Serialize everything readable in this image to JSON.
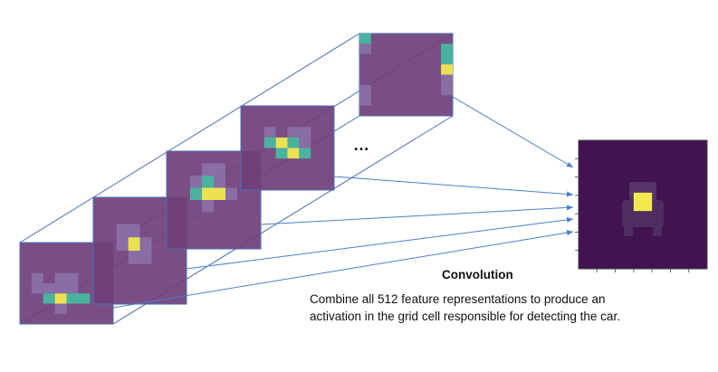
{
  "colors": {
    "map_background": "#6f3f7a",
    "map_border": "#4a6fb5",
    "connector_line": "#4a6fb5",
    "arrow": "#4a7fc8",
    "output_background": "#41134f",
    "output_border": "#444444",
    "low_activation": "#8a6fa6",
    "mid_activation": "#47b8a0",
    "high_activation": "#f2e94e",
    "text": "#111111"
  },
  "ellipsis": "…",
  "caption": {
    "title": "Convolution",
    "line1": "Combine all 512 feature representations to produce an",
    "line2": "activation in the grid cell responsible for detecting the car."
  },
  "feature_maps": [
    {
      "name": "feature-map-1",
      "cells": [
        {
          "row": 3,
          "col": 1,
          "level": "low"
        },
        {
          "row": 3,
          "col": 3,
          "level": "low"
        },
        {
          "row": 3,
          "col": 4,
          "level": "low"
        },
        {
          "row": 4,
          "col": 1,
          "level": "low"
        },
        {
          "row": 4,
          "col": 2,
          "level": "low"
        },
        {
          "row": 4,
          "col": 3,
          "level": "low"
        },
        {
          "row": 4,
          "col": 4,
          "level": "low"
        },
        {
          "row": 5,
          "col": 2,
          "level": "mid"
        },
        {
          "row": 5,
          "col": 3,
          "level": "high"
        },
        {
          "row": 5,
          "col": 4,
          "level": "mid"
        },
        {
          "row": 5,
          "col": 5,
          "level": "mid"
        },
        {
          "row": 6,
          "col": 3,
          "level": "low"
        }
      ]
    },
    {
      "name": "feature-map-2",
      "cells": [
        {
          "row": 2,
          "col": 2,
          "level": "low"
        },
        {
          "row": 2,
          "col": 3,
          "level": "low"
        },
        {
          "row": 3,
          "col": 2,
          "level": "low"
        },
        {
          "row": 3,
          "col": 3,
          "level": "high"
        },
        {
          "row": 3,
          "col": 4,
          "level": "low"
        },
        {
          "row": 4,
          "col": 3,
          "level": "low"
        },
        {
          "row": 4,
          "col": 4,
          "level": "low"
        }
      ]
    },
    {
      "name": "feature-map-3",
      "cells": [
        {
          "row": 1,
          "col": 3,
          "level": "low"
        },
        {
          "row": 1,
          "col": 4,
          "level": "low"
        },
        {
          "row": 2,
          "col": 2,
          "level": "low"
        },
        {
          "row": 2,
          "col": 3,
          "level": "mid"
        },
        {
          "row": 2,
          "col": 4,
          "level": "low"
        },
        {
          "row": 3,
          "col": 2,
          "level": "mid"
        },
        {
          "row": 3,
          "col": 3,
          "level": "high"
        },
        {
          "row": 3,
          "col": 4,
          "level": "high"
        },
        {
          "row": 3,
          "col": 5,
          "level": "low"
        },
        {
          "row": 4,
          "col": 3,
          "level": "low"
        }
      ]
    },
    {
      "name": "feature-map-4",
      "cells": [
        {
          "row": 2,
          "col": 2,
          "level": "low"
        },
        {
          "row": 2,
          "col": 4,
          "level": "low"
        },
        {
          "row": 2,
          "col": 5,
          "level": "low"
        },
        {
          "row": 3,
          "col": 2,
          "level": "mid"
        },
        {
          "row": 3,
          "col": 3,
          "level": "high"
        },
        {
          "row": 3,
          "col": 4,
          "level": "mid"
        },
        {
          "row": 3,
          "col": 5,
          "level": "low"
        },
        {
          "row": 4,
          "col": 3,
          "level": "mid"
        },
        {
          "row": 4,
          "col": 4,
          "level": "high"
        },
        {
          "row": 4,
          "col": 5,
          "level": "mid"
        }
      ]
    },
    {
      "name": "feature-map-512",
      "cells": [
        {
          "row": 0,
          "col": 0,
          "level": "mid"
        },
        {
          "row": 1,
          "col": 0,
          "level": "low"
        },
        {
          "row": 1,
          "col": 7,
          "level": "mid"
        },
        {
          "row": 2,
          "col": 7,
          "level": "mid"
        },
        {
          "row": 3,
          "col": 7,
          "level": "high"
        },
        {
          "row": 4,
          "col": 7,
          "level": "low"
        },
        {
          "row": 5,
          "col": 0,
          "level": "low"
        },
        {
          "row": 5,
          "col": 7,
          "level": "low"
        },
        {
          "row": 6,
          "col": 0,
          "level": "low"
        }
      ]
    }
  ],
  "output": {
    "grid_size": 7,
    "active_cell": {
      "row": 3,
      "col": 3
    }
  }
}
